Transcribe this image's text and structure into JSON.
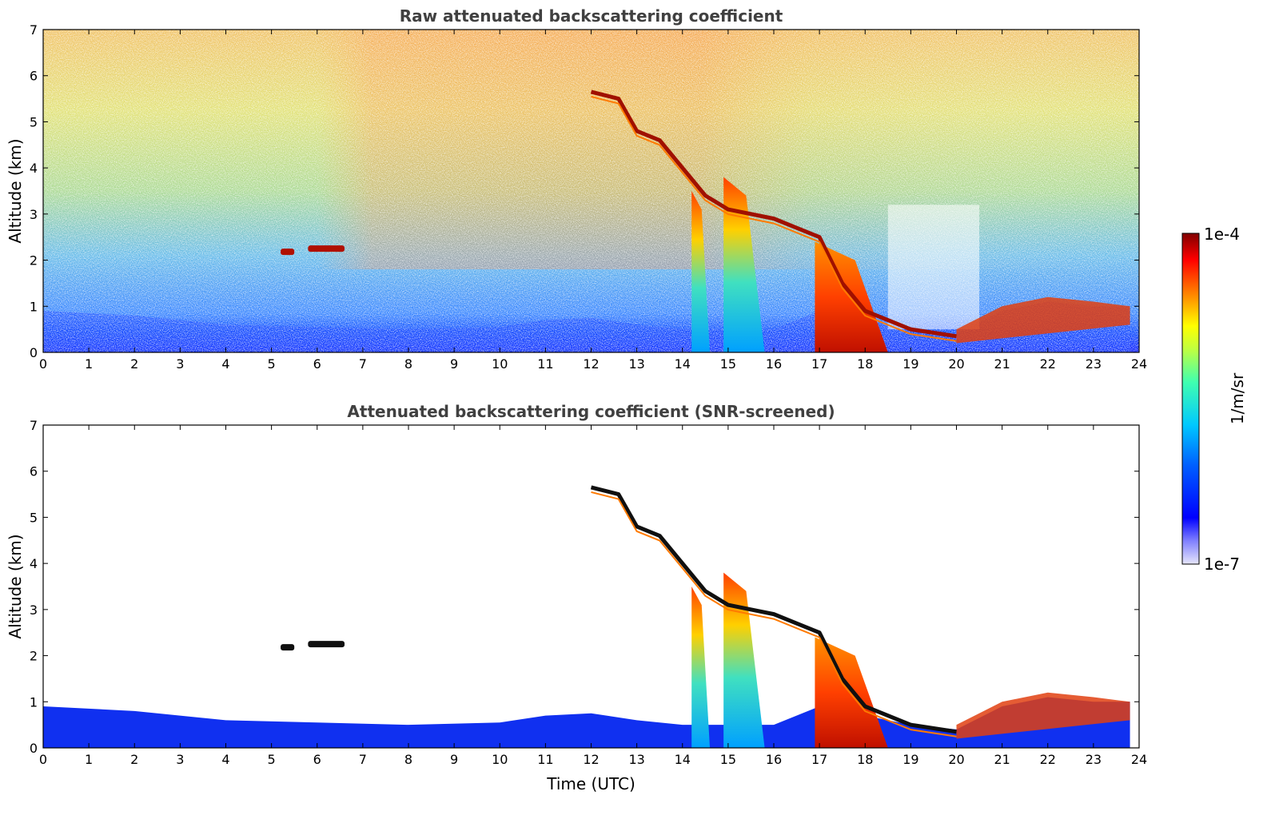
{
  "chart_data": [
    {
      "type": "heatmap",
      "title": "Raw attenuated backscattering coefficient",
      "ylabel": "Altitude (km)",
      "xlabel": "",
      "xlim": [
        0,
        24
      ],
      "ylim": [
        0,
        7
      ],
      "xticks": [
        "0",
        "1",
        "2",
        "3",
        "4",
        "5",
        "6",
        "7",
        "8",
        "9",
        "10",
        "11",
        "12",
        "13",
        "14",
        "15",
        "16",
        "17",
        "18",
        "19",
        "20",
        "21",
        "22",
        "23",
        "24"
      ],
      "yticks": [
        "0",
        "1",
        "2",
        "3",
        "4",
        "5",
        "6",
        "7"
      ],
      "screened": false
    },
    {
      "type": "heatmap",
      "title": "Attenuated backscattering coefficient (SNR-screened)",
      "ylabel": "Altitude (km)",
      "xlabel": "Time (UTC)",
      "xlim": [
        0,
        24
      ],
      "ylim": [
        0,
        7
      ],
      "xticks": [
        "0",
        "1",
        "2",
        "3",
        "4",
        "5",
        "6",
        "7",
        "8",
        "9",
        "10",
        "11",
        "12",
        "13",
        "14",
        "15",
        "16",
        "17",
        "18",
        "19",
        "20",
        "21",
        "22",
        "23",
        "24"
      ],
      "yticks": [
        "0",
        "1",
        "2",
        "3",
        "4",
        "5",
        "6",
        "7"
      ],
      "screened": true
    }
  ],
  "colorbar": {
    "label": "1/m/sr",
    "max_label": "1e-4",
    "min_label": "1e-7",
    "scale": "log",
    "colors": [
      "#e6e6fa",
      "#0000ff",
      "#00c8ff",
      "#40ffb0",
      "#ffff00",
      "#ff8000",
      "#ff0000",
      "#800000"
    ]
  },
  "features": {
    "aerosol_layer_top_km": [
      [
        0,
        0.9
      ],
      [
        2,
        0.8
      ],
      [
        4,
        0.6
      ],
      [
        6,
        0.55
      ],
      [
        8,
        0.5
      ],
      [
        10,
        0.55
      ],
      [
        11,
        0.7
      ],
      [
        12,
        0.75
      ],
      [
        13,
        0.6
      ],
      [
        14,
        0.5
      ],
      [
        16,
        0.5
      ],
      [
        17,
        0.9
      ],
      [
        18,
        0.7
      ],
      [
        19,
        0.5
      ],
      [
        20,
        0.4
      ],
      [
        21,
        0.9
      ],
      [
        22,
        1.1
      ],
      [
        23,
        1.0
      ],
      [
        23.8,
        1.0
      ]
    ],
    "cirrus_descending_band": [
      [
        12.0,
        5.65
      ],
      [
        12.6,
        5.5
      ],
      [
        13.0,
        4.8
      ],
      [
        13.5,
        4.6
      ],
      [
        14.0,
        4.0
      ],
      [
        14.5,
        3.4
      ],
      [
        15.0,
        3.1
      ],
      [
        16.0,
        2.9
      ],
      [
        16.5,
        2.7
      ],
      [
        17.0,
        2.5
      ],
      [
        17.5,
        1.5
      ],
      [
        18.0,
        0.9
      ],
      [
        19.0,
        0.5
      ],
      [
        20.0,
        0.35
      ]
    ],
    "cloud_boundary_layer_top": [
      [
        20.0,
        0.5
      ],
      [
        21.0,
        1.0
      ],
      [
        22.0,
        1.2
      ],
      [
        23.0,
        1.1
      ],
      [
        23.8,
        1.0
      ]
    ],
    "small_clouds": [
      {
        "x0": 5.2,
        "x1": 5.5,
        "y": 2.18
      },
      {
        "x0": 5.8,
        "x1": 6.6,
        "y": 2.25
      }
    ],
    "precipitation_fallstreaks": [
      {
        "x0": 14.2,
        "x1": 14.6,
        "ytop": 3.5
      },
      {
        "x0": 14.9,
        "x1": 15.8,
        "ytop": 3.8
      },
      {
        "x0": 16.9,
        "x1": 18.5,
        "ytop": 2.4
      }
    ],
    "clear_region_upper": {
      "x0": 18.5,
      "x1": 20.5
    }
  }
}
